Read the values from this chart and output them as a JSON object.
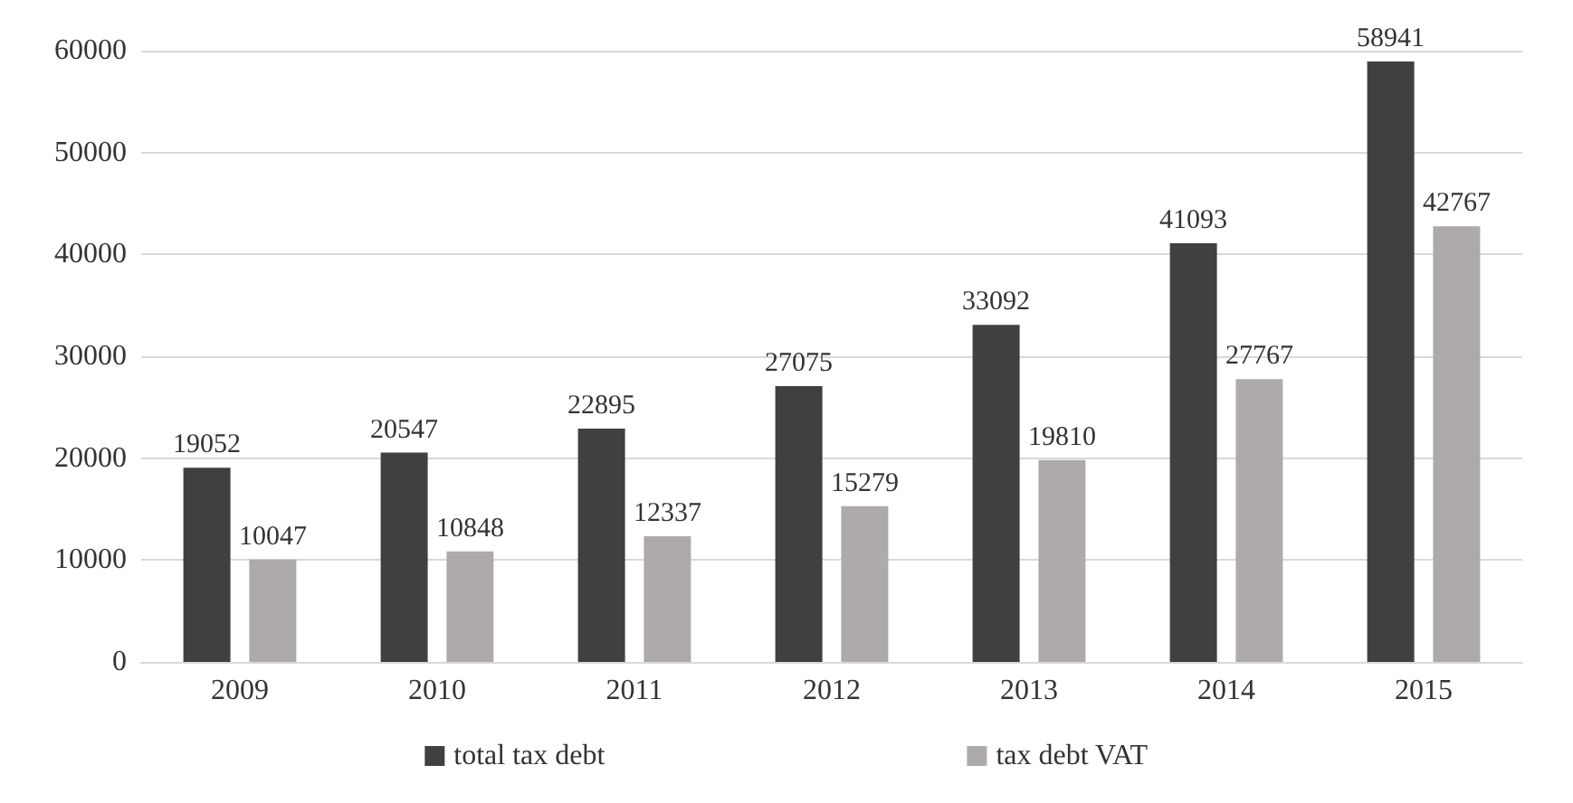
{
  "chart_data": {
    "type": "bar",
    "categories": [
      "2009",
      "2010",
      "2011",
      "2012",
      "2013",
      "2014",
      "2015"
    ],
    "series": [
      {
        "name": "total tax debt",
        "color": "#404040",
        "values": [
          19052,
          20547,
          22895,
          27075,
          33092,
          41093,
          58941
        ]
      },
      {
        "name": "tax debt VAT",
        "color": "#aeaaaa",
        "values": [
          10047,
          10848,
          12337,
          15279,
          19810,
          27767,
          42767
        ]
      }
    ],
    "ylim": [
      0,
      60000
    ],
    "yticks": [
      0,
      10000,
      20000,
      30000,
      40000,
      50000,
      60000
    ],
    "grid": "y",
    "legend": "bottom",
    "data_labels": true
  }
}
